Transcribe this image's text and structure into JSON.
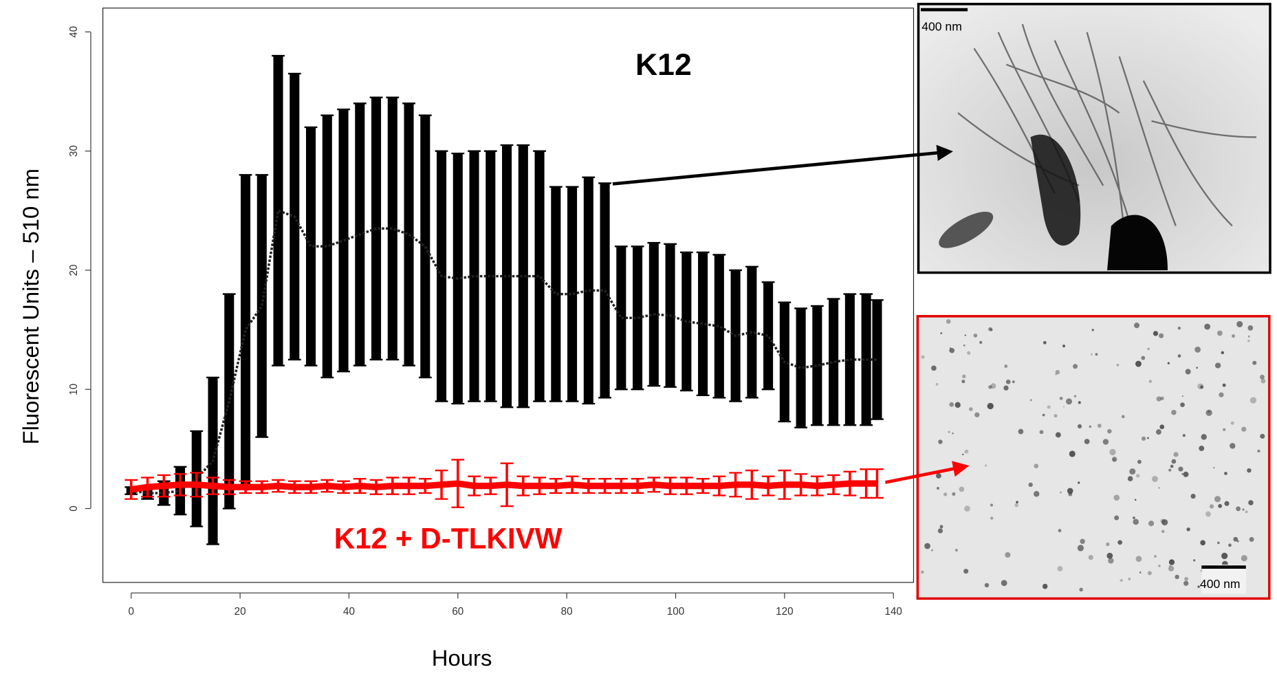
{
  "chart_data": {
    "type": "errorbar",
    "xlabel": "Hours",
    "ylabel": "Fluorescent Units – 510 nm",
    "x": [
      0,
      3,
      6,
      9,
      12,
      15,
      18,
      21,
      24,
      27,
      30,
      33,
      36,
      39,
      42,
      45,
      48,
      51,
      54,
      57,
      60,
      63,
      66,
      69,
      72,
      75,
      78,
      81,
      84,
      87,
      90,
      93,
      96,
      99,
      102,
      105,
      108,
      111,
      114,
      117,
      120,
      123,
      126,
      129,
      132,
      135,
      137
    ],
    "series": [
      {
        "name": "K12",
        "color": "#000000",
        "values": [
          1.5,
          1.3,
          1.3,
          1.5,
          2.5,
          4,
          9,
          15,
          17,
          25,
          24.5,
          22,
          22,
          22.5,
          23,
          23.5,
          23.5,
          23,
          22,
          19.5,
          19.3,
          19.5,
          19.5,
          19.5,
          19.5,
          19.5,
          18,
          18,
          18.3,
          18.3,
          16,
          16,
          16.3,
          16.2,
          15.7,
          15.5,
          15.3,
          14.5,
          14.8,
          14.5,
          12.3,
          11.8,
          12,
          12.3,
          12.5,
          12.5,
          12.5
        ],
        "errors": [
          0.3,
          0.5,
          1,
          2,
          4,
          7,
          9,
          13,
          11,
          13,
          12,
          10,
          11,
          11,
          11,
          11,
          11,
          11,
          11,
          10.5,
          10.5,
          10.5,
          10.5,
          11,
          11,
          10.5,
          9,
          9,
          9.5,
          9,
          6,
          6,
          6,
          6,
          5.8,
          6,
          6,
          5.5,
          5.5,
          4.5,
          5,
          5,
          5,
          5.3,
          5.5,
          5.5,
          5
        ]
      },
      {
        "name": "K12 + D-TLKIVW",
        "color": "#ff0000",
        "values": [
          1.6,
          1.8,
          1.9,
          2,
          2,
          1.9,
          1.8,
          1.8,
          1.8,
          1.9,
          1.8,
          1.8,
          1.9,
          1.8,
          1.9,
          1.8,
          1.9,
          1.9,
          1.9,
          2,
          2.1,
          1.9,
          1.9,
          2,
          1.9,
          1.9,
          1.9,
          2,
          1.9,
          1.9,
          1.9,
          1.9,
          2,
          1.9,
          1.9,
          1.9,
          1.9,
          2,
          2,
          1.9,
          2,
          2,
          1.9,
          2,
          2.1,
          2.1,
          2.1
        ],
        "errors": [
          0.8,
          0.8,
          0.9,
          0.9,
          1,
          0.7,
          0.6,
          0.5,
          0.5,
          0.5,
          0.5,
          0.5,
          0.5,
          0.5,
          0.6,
          0.6,
          0.7,
          0.7,
          0.6,
          1.2,
          2,
          0.8,
          0.7,
          1.8,
          0.8,
          0.7,
          0.6,
          0.7,
          0.6,
          0.6,
          0.6,
          0.6,
          0.6,
          0.7,
          0.7,
          0.6,
          0.8,
          1,
          1.2,
          0.8,
          1.2,
          0.9,
          0.8,
          0.8,
          1,
          1.2,
          1.2
        ]
      }
    ],
    "xlim": [
      -5.2,
      143.7
    ],
    "xticks": [
      0,
      20,
      40,
      60,
      80,
      100,
      120,
      140
    ],
    "ylim": [
      -6.2,
      42
    ],
    "yticks": [
      0,
      10,
      20,
      30,
      40
    ]
  },
  "images": [
    {
      "scale_label": "400 nm"
    },
    {
      "scale_label": "400 nm"
    }
  ]
}
